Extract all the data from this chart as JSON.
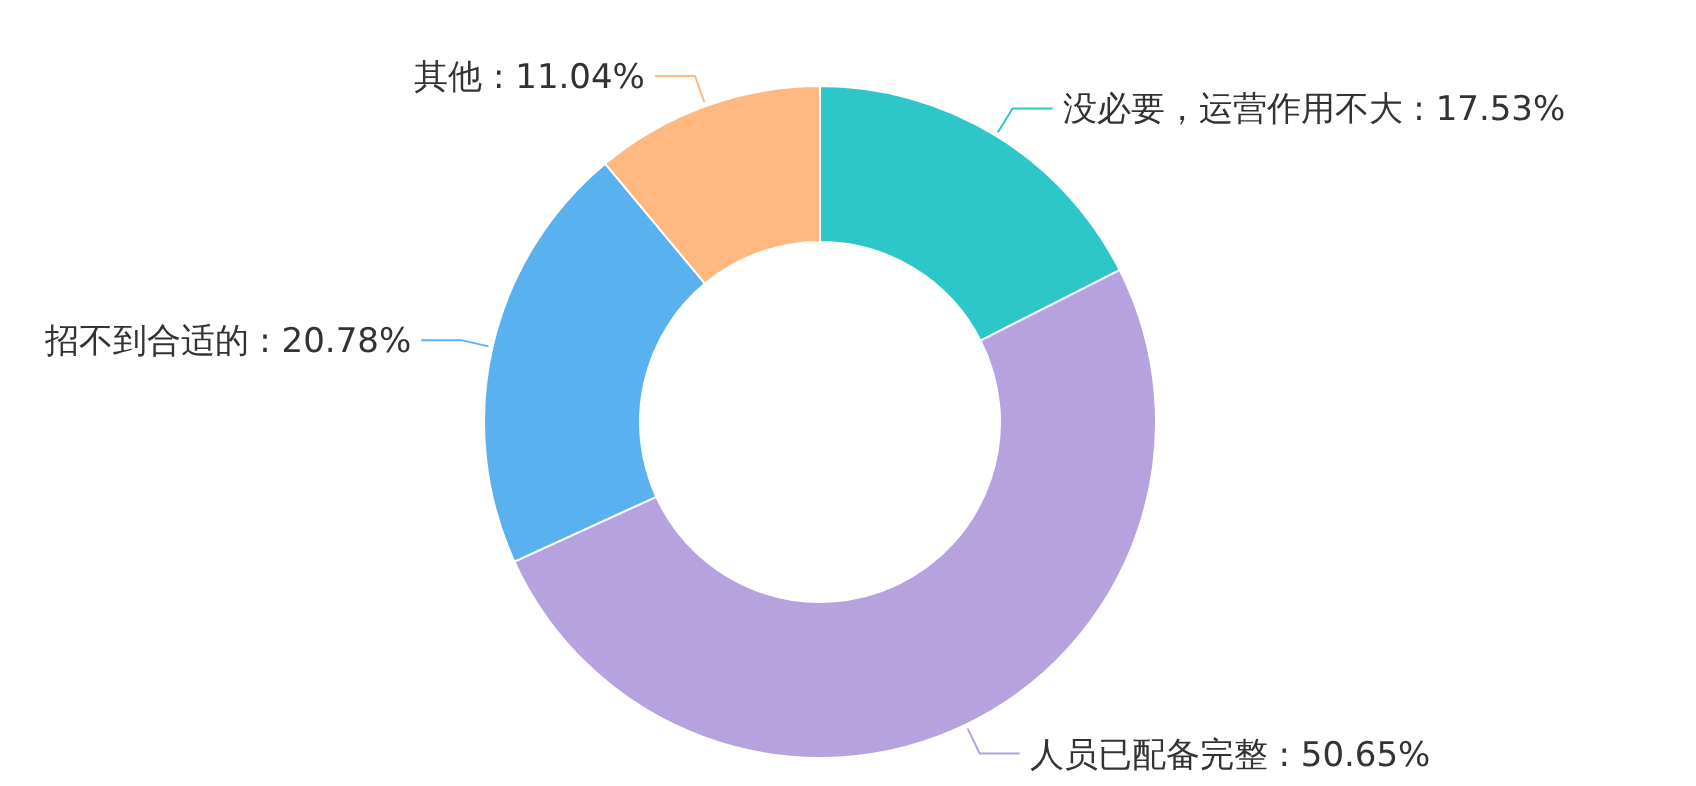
{
  "chart_data": {
    "type": "donut",
    "categories": [
      "没必要，运营作用不大",
      "人员已配备完整",
      "招不到合适的",
      "其他"
    ],
    "values": [
      17.53,
      50.65,
      20.78,
      11.04
    ],
    "value_labels": [
      "17.53%",
      "50.65%",
      "20.78%",
      "11.04%"
    ],
    "colors": [
      "#2ec7c9",
      "#b6a2de",
      "#5ab1ef",
      "#ffb980"
    ]
  }
}
